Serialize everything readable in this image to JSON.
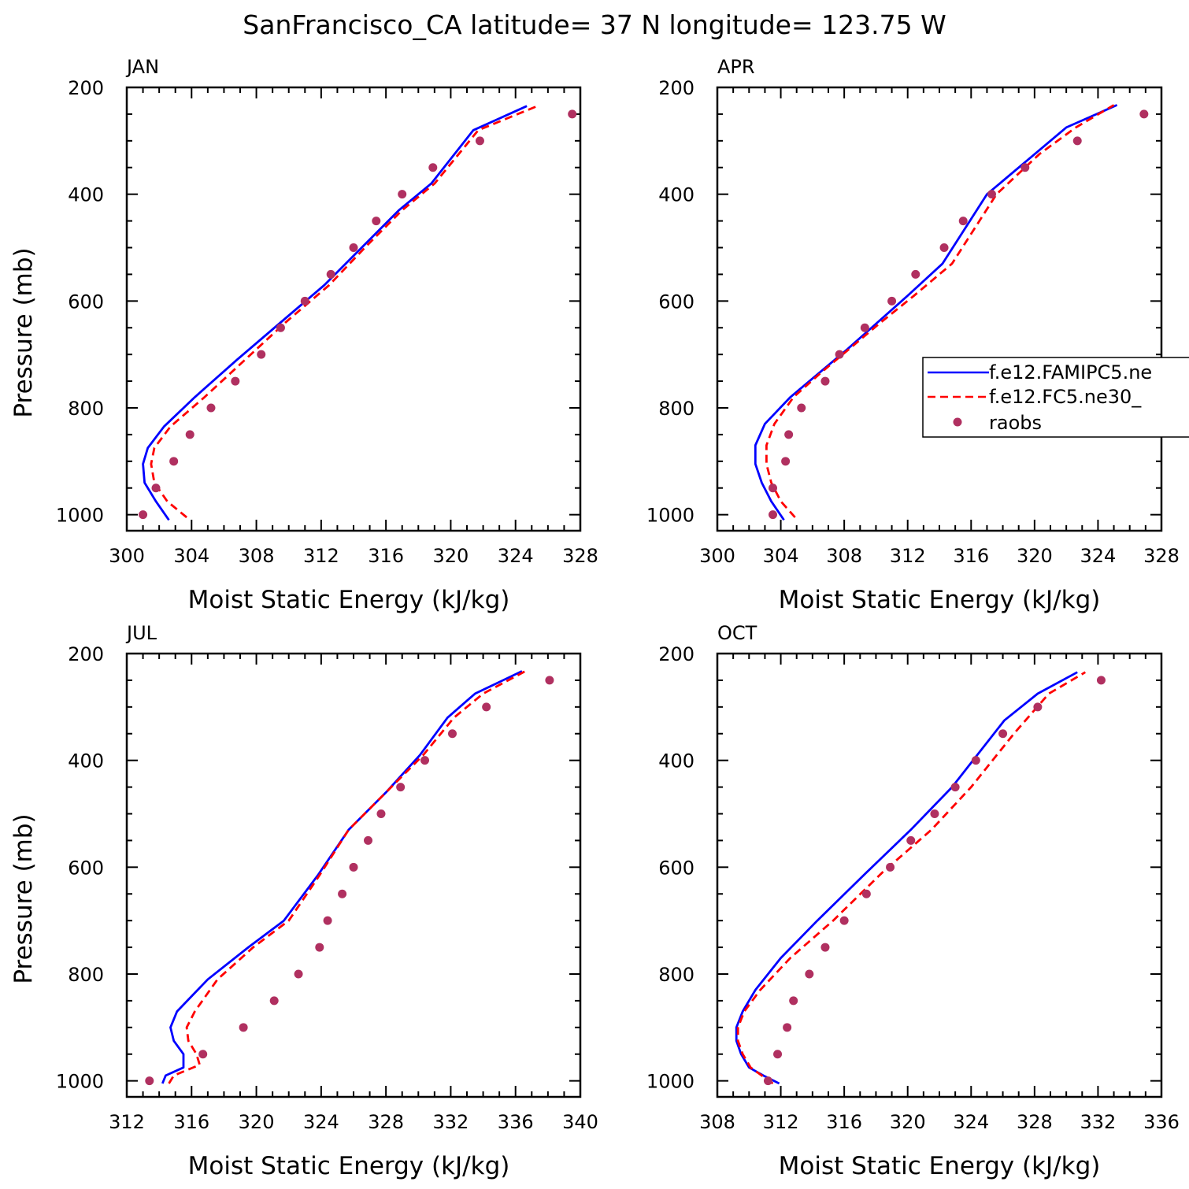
{
  "figure": {
    "title": "SanFrancisco_CA  latitude= 37 N longitude= 123.75 W"
  },
  "legend": {
    "entries": [
      {
        "label": "f.e12.FAMIPC5.ne",
        "color": "#0000ff",
        "style": "solid"
      },
      {
        "label": "f.e12.FC5.ne30_",
        "color": "#ff0000",
        "style": "dashed"
      },
      {
        "label": "raobs",
        "color": "#b03060",
        "style": "marker"
      }
    ],
    "placement": "center-right of APR panel, clipped at right edge"
  },
  "colors": {
    "model1": "#0000ff",
    "model2": "#ff0000",
    "raobs": "#b03060"
  },
  "chart_data": [
    {
      "type": "line",
      "panel": "JAN",
      "xlabel": "Moist Static Energy (kJ/kg)",
      "ylabel": "Pressure (mb)",
      "xlim": [
        300,
        328
      ],
      "ylim": [
        1030,
        200
      ],
      "xticks": [
        "300",
        "304",
        "308",
        "312",
        "316",
        "320",
        "324",
        "328"
      ],
      "yticks": [
        "200",
        "400",
        "600",
        "800",
        "1000"
      ],
      "series": [
        {
          "name": "f.e12.FAMIPC5.ne",
          "style": "solid",
          "x": [
            302.6,
            301.8,
            301.1,
            301.0,
            301.3,
            302.3,
            304.2,
            306.8,
            309.5,
            312.2,
            314.5,
            316.8,
            318.8,
            321.4,
            324.7
          ],
          "y": [
            1010,
            975,
            940,
            905,
            875,
            835,
            780,
            710,
            640,
            570,
            500,
            430,
            380,
            280,
            235
          ]
        },
        {
          "name": "f.e12.FC5.ne30_",
          "style": "dashed",
          "x": [
            303.7,
            302.5,
            301.7,
            301.5,
            301.7,
            302.7,
            304.8,
            307.3,
            309.8,
            312.5,
            314.7,
            317.0,
            319.0,
            321.7,
            325.5
          ],
          "y": [
            1005,
            975,
            940,
            905,
            875,
            835,
            780,
            710,
            640,
            570,
            500,
            430,
            380,
            280,
            233
          ]
        },
        {
          "name": "raobs",
          "style": "marker",
          "x": [
            301.0,
            301.8,
            302.9,
            303.9,
            305.2,
            306.7,
            308.3,
            309.5,
            311.0,
            312.6,
            314.0,
            315.4,
            317.0,
            318.9,
            321.8,
            327.5
          ],
          "y": [
            1000,
            950,
            900,
            850,
            800,
            750,
            700,
            650,
            600,
            550,
            500,
            450,
            400,
            350,
            300,
            250
          ]
        }
      ]
    },
    {
      "type": "line",
      "panel": "APR",
      "xlabel": "Moist Static Energy (kJ/kg)",
      "ylabel": "",
      "xlim": [
        300,
        328
      ],
      "ylim": [
        1030,
        200
      ],
      "xticks": [
        "300",
        "304",
        "308",
        "312",
        "316",
        "320",
        "324",
        "328"
      ],
      "yticks": [
        "200",
        "400",
        "600",
        "800",
        "1000"
      ],
      "series": [
        {
          "name": "f.e12.FAMIPC5.ne",
          "style": "solid",
          "x": [
            304.2,
            303.4,
            302.8,
            302.4,
            302.4,
            303.0,
            304.6,
            306.4,
            308.2,
            310.1,
            312.0,
            314.2,
            317.0,
            320.0,
            322.0,
            325.2
          ],
          "y": [
            1010,
            975,
            940,
            905,
            870,
            830,
            780,
            735,
            690,
            640,
            590,
            530,
            400,
            325,
            275,
            233
          ]
        },
        {
          "name": "f.e12.FC5.ne30_",
          "style": "dashed",
          "x": [
            304.9,
            304.0,
            303.4,
            303.1,
            303.1,
            303.6,
            304.8,
            306.5,
            308.3,
            310.3,
            312.4,
            314.8,
            317.6,
            320.3,
            322.6,
            325.0
          ],
          "y": [
            1005,
            975,
            940,
            905,
            870,
            830,
            780,
            735,
            690,
            640,
            590,
            530,
            400,
            325,
            275,
            233
          ]
        },
        {
          "name": "raobs",
          "style": "marker",
          "x": [
            303.5,
            303.5,
            304.3,
            304.5,
            305.3,
            306.8,
            307.7,
            309.3,
            311.0,
            312.5,
            314.3,
            315.5,
            317.3,
            319.4,
            322.7,
            326.9
          ],
          "y": [
            1000,
            950,
            900,
            850,
            800,
            750,
            700,
            650,
            600,
            550,
            500,
            450,
            400,
            350,
            300,
            250
          ]
        }
      ]
    },
    {
      "type": "line",
      "panel": "JUL",
      "xlabel": "Moist Static Energy (kJ/kg)",
      "ylabel": "Pressure (mb)",
      "xlim": [
        312,
        340
      ],
      "ylim": [
        1030,
        200
      ],
      "xticks": [
        "312",
        "316",
        "320",
        "324",
        "328",
        "332",
        "336",
        "340"
      ],
      "yticks": [
        "200",
        "400",
        "600",
        "800",
        "1000"
      ],
      "series": [
        {
          "name": "f.e12.FAMIPC5.ne",
          "style": "solid",
          "x": [
            314.2,
            314.4,
            315.5,
            315.5,
            314.9,
            314.7,
            315.1,
            317.0,
            319.5,
            321.7,
            323.8,
            325.7,
            328.0,
            330.1,
            331.8,
            333.5,
            336.4
          ],
          "y": [
            1005,
            990,
            975,
            950,
            925,
            900,
            870,
            810,
            750,
            700,
            615,
            530,
            460,
            390,
            320,
            275,
            233
          ]
        },
        {
          "name": "f.e12.FC5.ne30_",
          "style": "dashed",
          "x": [
            314.6,
            314.9,
            316.5,
            316.3,
            315.8,
            315.7,
            316.2,
            317.6,
            319.8,
            322.0,
            323.9,
            325.7,
            328.0,
            330.3,
            332.2,
            334.0,
            336.6
          ],
          "y": [
            1005,
            990,
            970,
            950,
            925,
            900,
            870,
            810,
            750,
            700,
            615,
            530,
            460,
            390,
            320,
            275,
            233
          ]
        },
        {
          "name": "raobs",
          "style": "marker",
          "x": [
            313.4,
            316.7,
            319.2,
            321.1,
            322.6,
            323.9,
            324.4,
            325.3,
            326.0,
            326.9,
            327.7,
            328.9,
            330.4,
            332.1,
            334.2,
            338.1
          ],
          "y": [
            1000,
            950,
            900,
            850,
            800,
            750,
            700,
            650,
            600,
            550,
            500,
            450,
            400,
            350,
            300,
            250
          ]
        }
      ]
    },
    {
      "type": "line",
      "panel": "OCT",
      "xlabel": "Moist Static Energy (kJ/kg)",
      "ylabel": "",
      "xlim": [
        308,
        336
      ],
      "ylim": [
        1030,
        200
      ],
      "xticks": [
        "308",
        "312",
        "316",
        "320",
        "324",
        "328",
        "332",
        "336"
      ],
      "yticks": [
        "200",
        "400",
        "600",
        "800",
        "1000"
      ],
      "series": [
        {
          "name": "f.e12.FAMIPC5.ne",
          "style": "solid",
          "x": [
            311.9,
            310.9,
            310.0,
            309.5,
            309.2,
            309.2,
            309.6,
            310.4,
            312.0,
            314.3,
            317.4,
            320.2,
            322.8,
            326.1,
            328.2,
            330.7
          ],
          "y": [
            1005,
            990,
            975,
            950,
            925,
            900,
            870,
            830,
            770,
            700,
            610,
            530,
            450,
            325,
            275,
            235
          ]
        },
        {
          "name": "f.e12.FC5.ne30_",
          "style": "dashed",
          "x": [
            311.5,
            310.8,
            310.1,
            309.6,
            309.3,
            309.3,
            309.7,
            310.7,
            312.6,
            315.3,
            318.4,
            321.5,
            324.0,
            326.7,
            328.9,
            331.2
          ],
          "y": [
            1005,
            990,
            975,
            950,
            925,
            900,
            870,
            830,
            770,
            700,
            610,
            530,
            450,
            350,
            275,
            235
          ]
        },
        {
          "name": "raobs",
          "style": "marker",
          "x": [
            311.2,
            311.8,
            312.4,
            312.8,
            313.8,
            314.8,
            316.0,
            317.4,
            318.9,
            320.2,
            321.7,
            323.0,
            324.3,
            326.0,
            328.2,
            332.2
          ],
          "y": [
            1000,
            950,
            900,
            850,
            800,
            750,
            700,
            650,
            600,
            550,
            500,
            450,
            400,
            350,
            300,
            250
          ]
        }
      ]
    }
  ]
}
